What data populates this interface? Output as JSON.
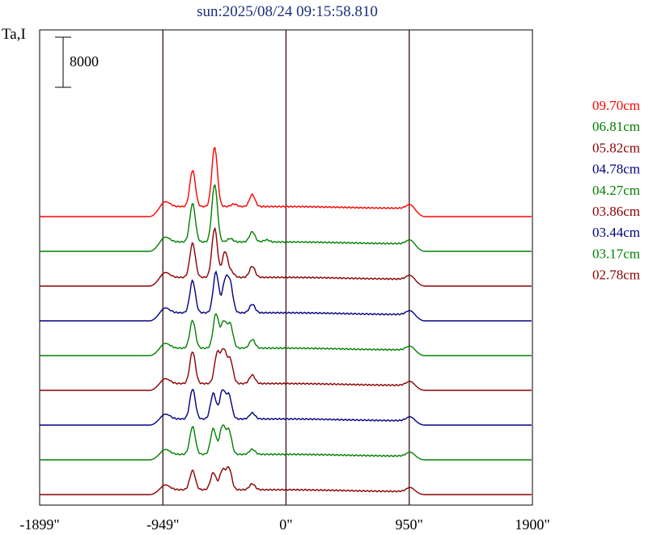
{
  "chart_data": {
    "type": "line",
    "title": "sun:2025/08/24 09:15:58.810",
    "ylabel": "Ta,I",
    "scale_bar_label": "8000",
    "xlim": [
      -1899,
      1900
    ],
    "x_ticks": [
      {
        "value": -1899,
        "label": "-1899\""
      },
      {
        "value": -949,
        "label": "-949\""
      },
      {
        "value": 0,
        "label": "0\""
      },
      {
        "value": 950,
        "label": "950\""
      },
      {
        "value": 1900,
        "label": "1900\""
      }
    ],
    "vertical_lines": [
      -949,
      0,
      950
    ],
    "grid": false,
    "legend_position": "right",
    "series": [
      {
        "name": "09.70cm",
        "color": "#ff0000",
        "offset": 8,
        "peaks": [
          [
            -720,
            8500
          ],
          [
            -550,
            14000
          ],
          [
            -260,
            2800
          ],
          [
            -400,
            600
          ]
        ]
      },
      {
        "name": "06.81cm",
        "color": "#008000",
        "offset": 7,
        "peaks": [
          [
            -720,
            9000
          ],
          [
            -550,
            13500
          ],
          [
            -260,
            2400
          ],
          [
            -430,
            800
          ],
          [
            -150,
            500
          ]
        ]
      },
      {
        "name": "05.82cm",
        "color": "#8b0000",
        "offset": 6,
        "peaks": [
          [
            -720,
            8000
          ],
          [
            -550,
            11500
          ],
          [
            -470,
            6000
          ],
          [
            -260,
            2600
          ],
          [
            -420,
            1200
          ]
        ]
      },
      {
        "name": "04.78cm",
        "color": "#000080",
        "offset": 5,
        "peaks": [
          [
            -720,
            7500
          ],
          [
            -540,
            9500
          ],
          [
            -470,
            7000
          ],
          [
            -430,
            6500
          ],
          [
            -260,
            2000
          ]
        ]
      },
      {
        "name": "04.27cm",
        "color": "#008000",
        "offset": 4,
        "peaks": [
          [
            -720,
            6500
          ],
          [
            -540,
            8000
          ],
          [
            -480,
            6000
          ],
          [
            -430,
            5500
          ],
          [
            -260,
            2000
          ]
        ]
      },
      {
        "name": "03.86cm",
        "color": "#8b0000",
        "offset": 3,
        "peaks": [
          [
            -720,
            7500
          ],
          [
            -530,
            7000
          ],
          [
            -480,
            7500
          ],
          [
            -430,
            5500
          ],
          [
            -260,
            2000
          ]
        ]
      },
      {
        "name": "03.44cm",
        "color": "#000080",
        "offset": 2,
        "peaks": [
          [
            -720,
            7000
          ],
          [
            -560,
            6000
          ],
          [
            -490,
            6500
          ],
          [
            -440,
            5500
          ],
          [
            -260,
            1400
          ]
        ]
      },
      {
        "name": "03.17cm",
        "color": "#008000",
        "offset": 1,
        "peaks": [
          [
            -720,
            6500
          ],
          [
            -560,
            6000
          ],
          [
            -490,
            6500
          ],
          [
            -440,
            5500
          ],
          [
            -260,
            1200
          ]
        ]
      },
      {
        "name": "02.78cm",
        "color": "#8b0000",
        "offset": 0,
        "peaks": [
          [
            -720,
            4500
          ],
          [
            -560,
            4000
          ],
          [
            -490,
            4500
          ],
          [
            -440,
            5000
          ],
          [
            -260,
            1400
          ]
        ]
      }
    ]
  }
}
